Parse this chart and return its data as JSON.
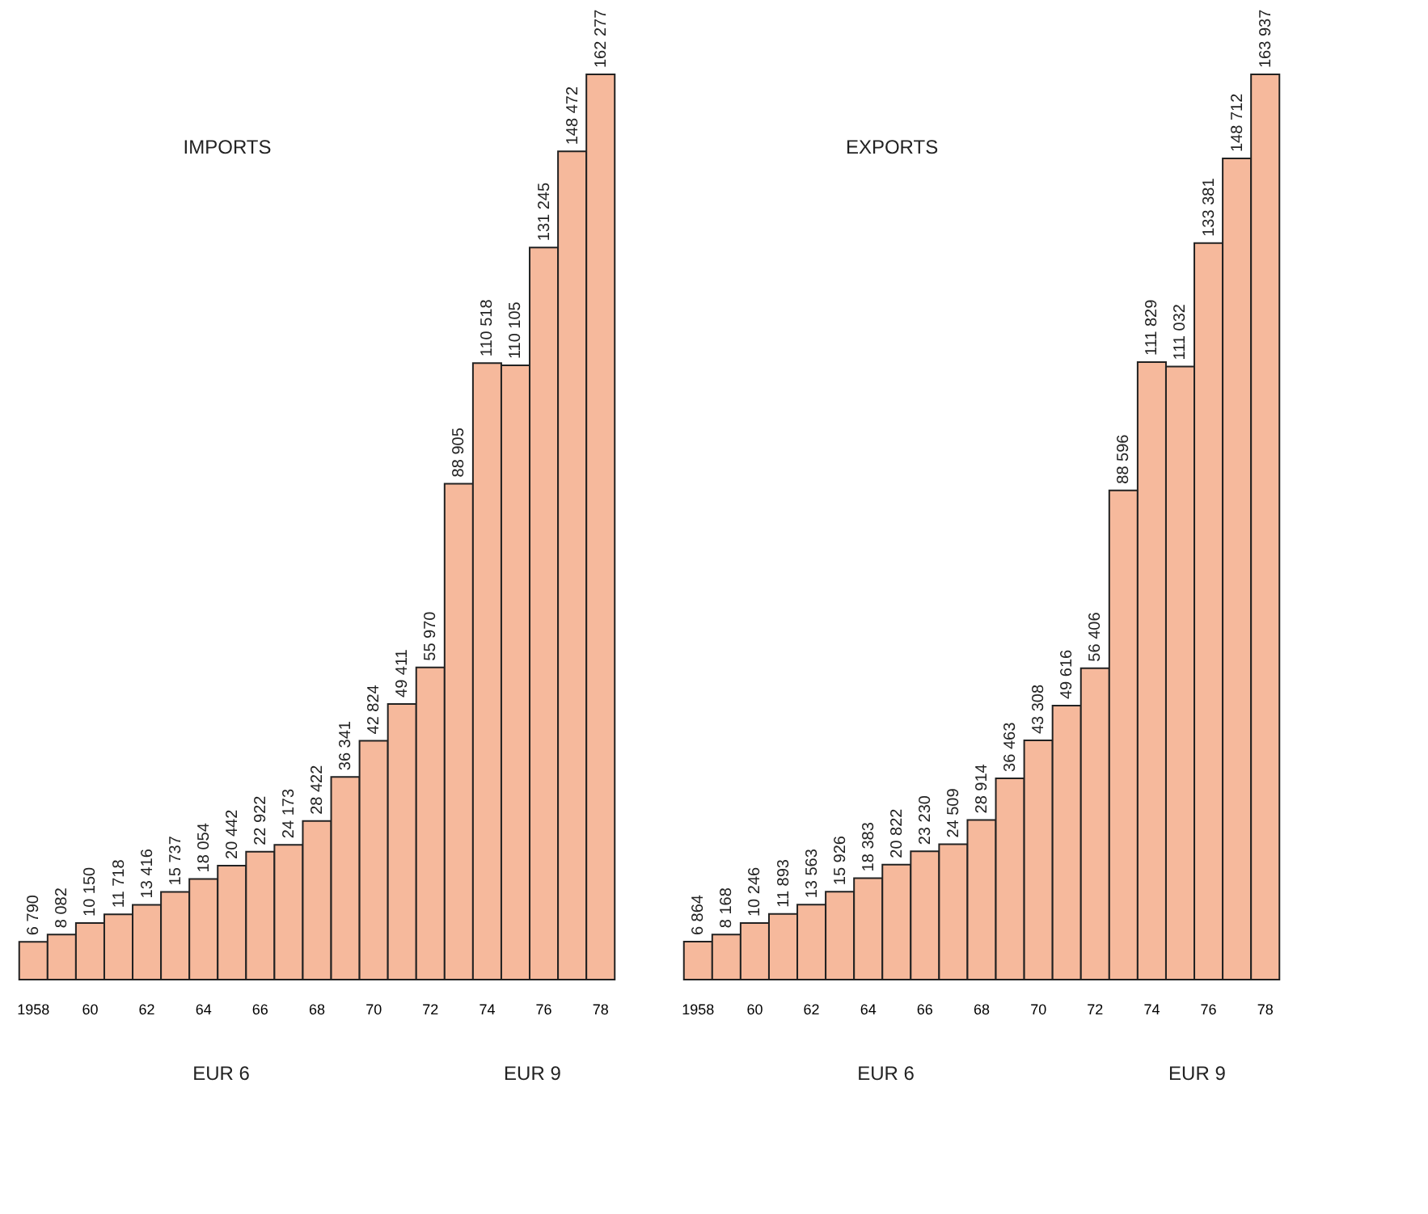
{
  "chart_data": [
    {
      "type": "bar",
      "title": "IMPORTS",
      "categories": [
        "1958",
        null,
        "60",
        null,
        "62",
        null,
        "64",
        null,
        "66",
        null,
        "68",
        null,
        "70",
        null,
        "72",
        null,
        "74",
        null,
        "76",
        null,
        "78"
      ],
      "values": [
        6790,
        8082,
        10150,
        11718,
        13416,
        15737,
        18054,
        20442,
        22922,
        24173,
        28422,
        36341,
        42824,
        49411,
        55970,
        88905,
        110518,
        110105,
        131245,
        148472,
        162277
      ],
      "value_labels": [
        "6 790",
        "8 082",
        "10 150",
        "11 718",
        "13 416",
        "15 737",
        "18 054",
        "20 442",
        "22 922",
        "24 173",
        "28 422",
        "36 341",
        "42 824",
        "49 411",
        "55 970",
        "88 905",
        "110 518",
        "110 105",
        "131 245",
        "148 472",
        "162 277"
      ],
      "color": "#f6b99c",
      "annotations": [
        "EUR 6",
        "EUR 9"
      ]
    },
    {
      "type": "bar",
      "title": "EXPORTS",
      "categories": [
        "1958",
        null,
        "60",
        null,
        "62",
        null,
        "64",
        null,
        "66",
        null,
        "68",
        null,
        "70",
        null,
        "72",
        null,
        "74",
        null,
        "76",
        null,
        "78"
      ],
      "values": [
        6864,
        8168,
        10246,
        11893,
        13563,
        15926,
        18383,
        20822,
        23230,
        24509,
        28914,
        36463,
        43308,
        49616,
        56406,
        88596,
        111829,
        111032,
        133381,
        148712,
        163937
      ],
      "value_labels": [
        "6 864",
        "8 168",
        "10 246",
        "11 893",
        "13 563",
        "15 926",
        "18 383",
        "20 822",
        "23 230",
        "24 509",
        "28 914",
        "36 463",
        "43 308",
        "49 616",
        "56 406",
        "88 596",
        "111 829",
        "111 032",
        "133 381",
        "148 712",
        "163 937"
      ],
      "color": "#f6b99c",
      "annotations": [
        "EUR 6",
        "EUR 9"
      ]
    }
  ]
}
